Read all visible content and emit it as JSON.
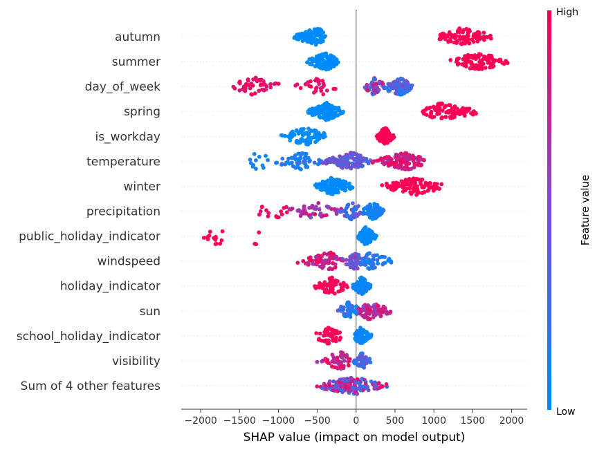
{
  "chart_data": {
    "type": "scatter",
    "subtype": "beeswarm",
    "xlabel": "SHAP value (impact on model output)",
    "xlim": [
      -2250,
      2200
    ],
    "xticks": [
      -2000,
      -1500,
      -1000,
      -500,
      0,
      500,
      1000,
      1500,
      2000
    ],
    "xtick_labels": [
      "−2000",
      "−1500",
      "−1000",
      "−500",
      "0",
      "500",
      "1000",
      "1500",
      "2000"
    ],
    "colorbar": {
      "title": "Feature value",
      "high_label": "High",
      "low_label": "Low",
      "low_color": "#008bfb",
      "high_color": "#ff0052"
    },
    "features": [
      {
        "name": "autumn",
        "clusters": [
          {
            "range": [
              -820,
              -380
            ],
            "center": -480,
            "n": 130,
            "fv": [
              0.0,
              0.0
            ]
          },
          {
            "range": [
              1020,
              1800
            ],
            "center": 1350,
            "n": 110,
            "fv": [
              1.0,
              1.0
            ]
          }
        ]
      },
      {
        "name": "summer",
        "clusters": [
          {
            "range": [
              -640,
              -210
            ],
            "center": -380,
            "n": 120,
            "fv": [
              0.0,
              0.0
            ]
          },
          {
            "range": [
              1180,
              2000
            ],
            "center": 1550,
            "n": 105,
            "fv": [
              1.0,
              1.0
            ]
          }
        ]
      },
      {
        "name": "day_of_week",
        "clusters": [
          {
            "range": [
              -1700,
              -920
            ],
            "center": -1300,
            "n": 45,
            "fv": [
              0.85,
              1.0
            ]
          },
          {
            "range": [
              -800,
              -230
            ],
            "center": -450,
            "n": 30,
            "fv": [
              0.8,
              1.0
            ]
          },
          {
            "range": [
              100,
              400
            ],
            "center": 230,
            "n": 45,
            "fv": [
              0.2,
              0.9
            ]
          },
          {
            "range": [
              300,
              770
            ],
            "center": 560,
            "n": 95,
            "fv": [
              0.05,
              0.55
            ]
          }
        ]
      },
      {
        "name": "spring",
        "clusters": [
          {
            "range": [
              -650,
              -150
            ],
            "center": -370,
            "n": 145,
            "fv": [
              0.0,
              0.0
            ]
          },
          {
            "range": [
              790,
              1630
            ],
            "center": 1100,
            "n": 100,
            "fv": [
              1.0,
              1.0
            ]
          }
        ]
      },
      {
        "name": "is_workday",
        "clusters": [
          {
            "range": [
              -980,
              -340
            ],
            "center": -650,
            "n": 85,
            "fv": [
              0.0,
              0.0
            ]
          },
          {
            "range": [
              260,
              500
            ],
            "center": 370,
            "n": 110,
            "fv": [
              1.0,
              1.0
            ]
          }
        ]
      },
      {
        "name": "temperature",
        "clusters": [
          {
            "range": [
              -1550,
              -1050
            ],
            "center": -1250,
            "n": 12,
            "fv": [
              0.0,
              0.12
            ]
          },
          {
            "range": [
              -1050,
              -400
            ],
            "center": -700,
            "n": 55,
            "fv": [
              0.0,
              0.25
            ]
          },
          {
            "range": [
              -450,
              200
            ],
            "center": -50,
            "n": 110,
            "fv": [
              0.25,
              0.55
            ]
          },
          {
            "range": [
              200,
              940
            ],
            "center": 650,
            "n": 120,
            "fv": [
              0.7,
              1.0
            ]
          }
        ]
      },
      {
        "name": "winter",
        "clusters": [
          {
            "range": [
              -540,
              -20
            ],
            "center": -310,
            "n": 145,
            "fv": [
              0.0,
              0.0
            ]
          },
          {
            "range": [
              240,
              1150
            ],
            "center": 780,
            "n": 100,
            "fv": [
              1.0,
              1.0
            ]
          }
        ]
      },
      {
        "name": "precipitation",
        "clusters": [
          {
            "range": [
              -1380,
              -820
            ],
            "center": -1000,
            "n": 18,
            "fv": [
              0.85,
              1.0
            ]
          },
          {
            "range": [
              -900,
              -150
            ],
            "center": -480,
            "n": 50,
            "fv": [
              0.5,
              0.95
            ]
          },
          {
            "range": [
              -250,
              120
            ],
            "center": -60,
            "n": 40,
            "fv": [
              0.15,
              0.5
            ]
          },
          {
            "range": [
              80,
              370
            ],
            "center": 220,
            "n": 85,
            "fv": [
              0.0,
              0.15
            ]
          }
        ]
      },
      {
        "name": "public_holiday_indicator",
        "clusters": [
          {
            "range": [
              -2130,
              -1480
            ],
            "center": -1800,
            "n": 14,
            "fv": [
              1.0,
              1.0
            ]
          },
          {
            "range": [
              -1400,
              -1150
            ],
            "center": -1300,
            "n": 3,
            "fv": [
              1.0,
              1.0
            ]
          },
          {
            "range": [
              20,
              270
            ],
            "center": 120,
            "n": 95,
            "fv": [
              0.0,
              0.0
            ]
          }
        ]
      },
      {
        "name": "windspeed",
        "clusters": [
          {
            "range": [
              -800,
              -150
            ],
            "center": -320,
            "n": 65,
            "fv": [
              0.6,
              1.0
            ]
          },
          {
            "range": [
              -200,
              120
            ],
            "center": 0,
            "n": 60,
            "fv": [
              0.3,
              0.65
            ]
          },
          {
            "range": [
              60,
              490
            ],
            "center": 180,
            "n": 45,
            "fv": [
              0.0,
              0.3
            ]
          }
        ]
      },
      {
        "name": "holiday_indicator",
        "clusters": [
          {
            "range": [
              -560,
              -80
            ],
            "center": -300,
            "n": 60,
            "fv": [
              0.95,
              1.0
            ]
          },
          {
            "range": [
              -60,
              200
            ],
            "center": 70,
            "n": 75,
            "fv": [
              0.0,
              0.08
            ]
          }
        ]
      },
      {
        "name": "sun",
        "clusters": [
          {
            "range": [
              -260,
              80
            ],
            "center": -100,
            "n": 55,
            "fv": [
              0.0,
              0.35
            ]
          },
          {
            "range": [
              0,
              480
            ],
            "center": 160,
            "n": 75,
            "fv": [
              0.55,
              1.0
            ]
          }
        ]
      },
      {
        "name": "school_holiday_indicator",
        "clusters": [
          {
            "range": [
              -560,
              -150
            ],
            "center": -330,
            "n": 55,
            "fv": [
              0.95,
              1.0
            ]
          },
          {
            "range": [
              -30,
              200
            ],
            "center": 40,
            "n": 90,
            "fv": [
              0.0,
              0.08
            ]
          }
        ]
      },
      {
        "name": "visibility",
        "clusters": [
          {
            "range": [
              -520,
              -20
            ],
            "center": -180,
            "n": 55,
            "fv": [
              0.6,
              1.0
            ]
          },
          {
            "range": [
              -40,
              210
            ],
            "center": 60,
            "n": 40,
            "fv": [
              0.05,
              0.5
            ]
          }
        ]
      },
      {
        "name": "Sum of 4 other features",
        "clusters": [
          {
            "range": [
              -560,
              420
            ],
            "center": 0,
            "n": 150,
            "fv": [
              0.1,
              1.0
            ]
          }
        ]
      }
    ]
  }
}
